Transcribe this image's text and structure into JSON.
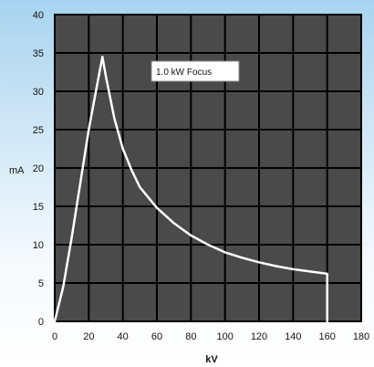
{
  "chart_data": {
    "type": "line",
    "xlabel": "kV",
    "ylabel": "mA",
    "xlim": [
      0,
      180
    ],
    "ylim": [
      0,
      40
    ],
    "x_ticks": [
      "0",
      "20",
      "40",
      "60",
      "80",
      "100",
      "120",
      "140",
      "160",
      "180"
    ],
    "y_ticks": [
      "0",
      "5",
      "10",
      "15",
      "20",
      "25",
      "30",
      "35",
      "40"
    ],
    "grid": true,
    "annotation": "1.0 kW Focus",
    "colors": {
      "plot_bg": "#4a4a4a",
      "grid": "#000000",
      "line": "#ffffff",
      "background_accent": "#b9dcf2"
    },
    "series": [
      {
        "points": [
          [
            0,
            0
          ],
          [
            5,
            4.5
          ],
          [
            10,
            11
          ],
          [
            15,
            18
          ],
          [
            20,
            25
          ],
          [
            25,
            31
          ],
          [
            28,
            34.5
          ],
          [
            30,
            32
          ],
          [
            35,
            26.5
          ],
          [
            40,
            22.5
          ],
          [
            45,
            19.8
          ],
          [
            50,
            17.5
          ],
          [
            60,
            14.8
          ],
          [
            70,
            12.8
          ],
          [
            80,
            11.2
          ],
          [
            90,
            10
          ],
          [
            100,
            9
          ],
          [
            110,
            8.3
          ],
          [
            120,
            7.7
          ],
          [
            130,
            7.2
          ],
          [
            140,
            6.8
          ],
          [
            150,
            6.5
          ],
          [
            160,
            6.2
          ],
          [
            160,
            0
          ]
        ]
      }
    ]
  }
}
